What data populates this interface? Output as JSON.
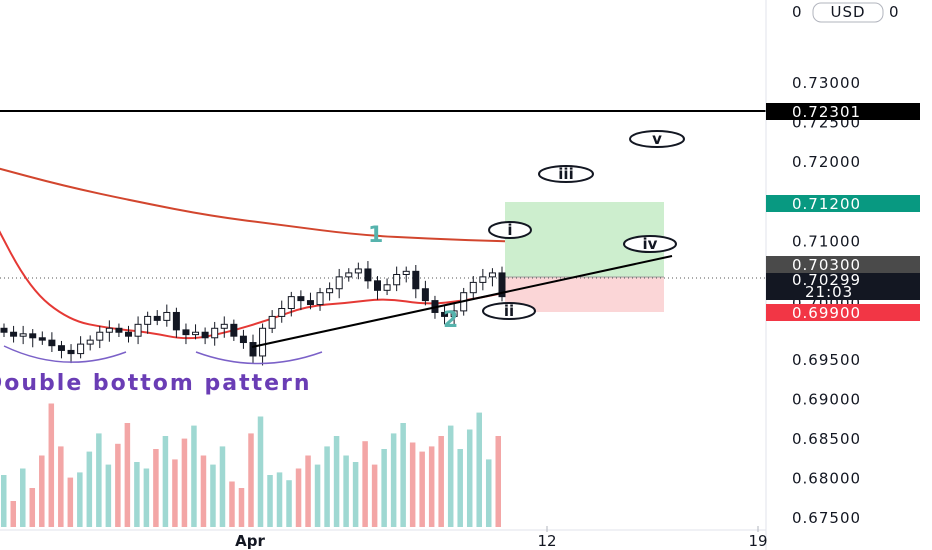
{
  "chart_data": {
    "type": "candlestick",
    "instrument_currency": "USD",
    "title": "",
    "xlabel": "",
    "ylabel": "",
    "ylim": [
      0.6735,
      0.7405
    ],
    "y_ticks": [
      "0.73000",
      "0.72500",
      "0.72000",
      "0.71500",
      "0.71000",
      "0.70500",
      "0.70000",
      "0.69500",
      "0.69000",
      "0.68500",
      "0.68000",
      "0.67500"
    ],
    "y_top_label_partial": "0",
    "x_ticks": [
      "Apr",
      "12",
      "19"
    ],
    "grid": false,
    "price_levels": [
      {
        "name": "horizontal-resistance",
        "value": 0.72301,
        "label": "0.72301",
        "color": "#000000"
      },
      {
        "name": "take-profit",
        "value": 0.712,
        "label": "0.71200",
        "color": "#089981"
      },
      {
        "name": "entry",
        "value": 0.703,
        "label": "0.70300",
        "color": "#4a4a4a"
      },
      {
        "name": "last-price",
        "value": 0.70299,
        "label": "0.70299",
        "countdown": "21:03",
        "color": "#131722"
      },
      {
        "name": "stop-loss",
        "value": 0.699,
        "label": "0.69900",
        "color": "#f23645"
      }
    ],
    "partial_tick_behind_tag": "0.70000",
    "annotations": {
      "pattern_label": "Double bottom pattern",
      "wave_numbers": [
        "1",
        "2"
      ],
      "projected_waves": [
        "i",
        "ii",
        "iii",
        "iv",
        "v"
      ]
    },
    "series": [
      {
        "name": "",
        "kind": "moving-average-long",
        "color": "#d2462e",
        "values": [
          0.7195,
          0.717,
          0.715,
          0.7132,
          0.712,
          0.7108,
          0.7103,
          0.71
        ]
      },
      {
        "name": "",
        "kind": "moving-average-short",
        "color": "#e53935",
        "values": [
          0.7135,
          0.704,
          0.7,
          0.699,
          0.6985,
          0.6975,
          0.6985,
          0.7,
          0.7018,
          0.7022,
          0.7028,
          0.702,
          0.7025,
          0.7035
        ]
      }
    ],
    "candles_close": [
      0.6985,
      0.698,
      0.6983,
      0.6978,
      0.6975,
      0.6968,
      0.6962,
      0.6958,
      0.697,
      0.6975,
      0.6985,
      0.699,
      0.6985,
      0.698,
      0.6995,
      0.7005,
      0.7,
      0.701,
      0.6988,
      0.6982,
      0.6985,
      0.6978,
      0.699,
      0.6995,
      0.698,
      0.6972,
      0.6955,
      0.699,
      0.7005,
      0.7015,
      0.703,
      0.7025,
      0.702,
      0.7035,
      0.704,
      0.7055,
      0.706,
      0.7065,
      0.705,
      0.7038,
      0.7045,
      0.7058,
      0.7062,
      0.704,
      0.7025,
      0.701,
      0.7005,
      0.7012,
      0.7035,
      0.7048,
      0.7055,
      0.706,
      0.703
    ],
    "volume": [
      40,
      20,
      45,
      30,
      55,
      95,
      62,
      38,
      42,
      58,
      72,
      48,
      64,
      80,
      50,
      45,
      60,
      70,
      52,
      68,
      78,
      55,
      48,
      62,
      35,
      30,
      72,
      85,
      40,
      42,
      36,
      45,
      55,
      48,
      62,
      70,
      55,
      50,
      66,
      48,
      60,
      72,
      80,
      65,
      58,
      62,
      70,
      78,
      60,
      75,
      88,
      52,
      70
    ]
  }
}
